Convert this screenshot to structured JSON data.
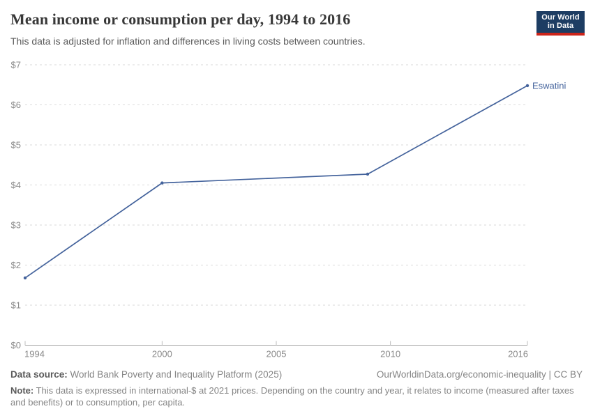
{
  "header": {
    "title": "Mean income or consumption per day, 1994 to 2016",
    "subtitle": "This data is adjusted for inflation and differences in living costs between countries."
  },
  "logo": {
    "line1": "Our World",
    "line2": "in Data",
    "bg_color": "#1d3d63",
    "accent_color": "#cc241a"
  },
  "chart_data": {
    "type": "line",
    "title": "Mean income or consumption per day, 1994 to 2016",
    "xlabel": "",
    "ylabel": "",
    "xlim": [
      1994,
      2016
    ],
    "ylim": [
      0,
      7
    ],
    "x_ticks": [
      1994,
      2000,
      2005,
      2010,
      2016
    ],
    "y_ticks": [
      0,
      1,
      2,
      3,
      4,
      5,
      6,
      7
    ],
    "y_tick_prefix": "$",
    "grid": "horizontal-dashed",
    "legend_position": "end-of-line-label",
    "series": [
      {
        "name": "Eswatini",
        "color": "#44639c",
        "points": [
          {
            "x": 1994,
            "y": 1.68
          },
          {
            "x": 2000,
            "y": 4.05
          },
          {
            "x": 2009,
            "y": 4.27
          },
          {
            "x": 2016,
            "y": 6.48
          }
        ]
      }
    ]
  },
  "footer": {
    "data_source_label": "Data source:",
    "data_source": "World Bank Poverty and Inequality Platform (2025)",
    "link": "OurWorldinData.org/economic-inequality | CC BY",
    "note_label": "Note:",
    "note": "This data is expressed in international-$ at 2021 prices. Depending on the country and year, it relates to income (measured after taxes and benefits) or to consumption, per capita."
  }
}
